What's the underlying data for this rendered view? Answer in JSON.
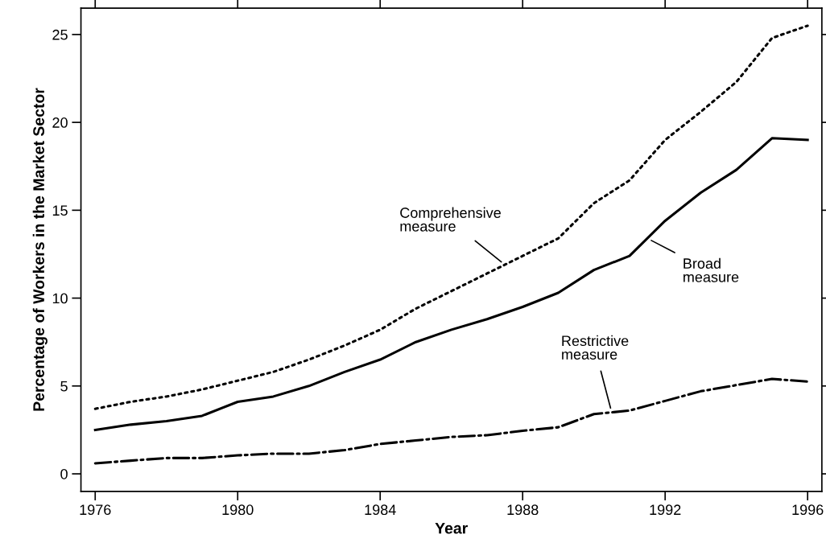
{
  "chart_data": {
    "type": "line",
    "xlabel": "Year",
    "ylabel": "Percentage of Workers in the Market Sector",
    "x": [
      1976,
      1977,
      1978,
      1979,
      1980,
      1981,
      1982,
      1983,
      1984,
      1985,
      1986,
      1987,
      1988,
      1989,
      1990,
      1991,
      1992,
      1993,
      1994,
      1995,
      1996
    ],
    "series": [
      {
        "name": "Comprehensive\nmeasure",
        "color": "#000000",
        "line_style": "dotted",
        "values": [
          3.7,
          4.1,
          4.4,
          4.8,
          5.3,
          5.8,
          6.5,
          7.3,
          8.2,
          9.4,
          10.4,
          11.4,
          12.4,
          13.4,
          15.4,
          16.7,
          19.0,
          20.6,
          22.3,
          24.8,
          25.5
        ]
      },
      {
        "name": "Broad\nmeasure",
        "color": "#000000",
        "line_style": "solid",
        "values": [
          2.5,
          2.8,
          3.0,
          3.3,
          4.1,
          4.4,
          5.0,
          5.8,
          6.5,
          7.5,
          8.2,
          8.8,
          9.5,
          10.3,
          11.6,
          12.4,
          14.4,
          16.0,
          17.3,
          19.1,
          19.0
        ]
      },
      {
        "name": "Restrictive\nmeasure",
        "color": "#000000",
        "line_style": "dashdot",
        "values": [
          0.6,
          0.75,
          0.9,
          0.9,
          1.05,
          1.15,
          1.15,
          1.35,
          1.7,
          1.9,
          2.1,
          2.2,
          2.45,
          2.65,
          3.4,
          3.6,
          4.15,
          4.7,
          5.05,
          5.4,
          5.25
        ]
      }
    ],
    "xlim": [
      1975.6,
      1996.4
    ],
    "xticks": [
      1976,
      1980,
      1984,
      1988,
      1992,
      1996
    ],
    "ylim": [
      -1.0,
      26.5
    ],
    "yticks": [
      0,
      5,
      10,
      15,
      20,
      25
    ],
    "grid": false,
    "legend": false
  }
}
